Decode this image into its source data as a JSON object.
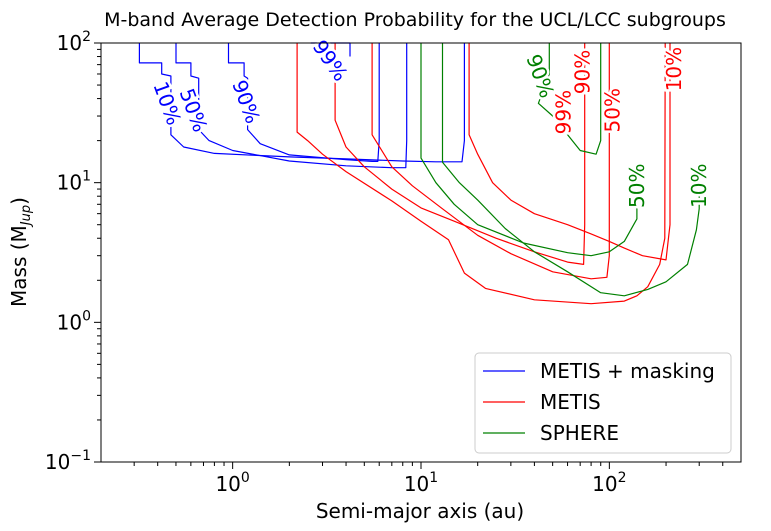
{
  "chart_data": {
    "type": "line",
    "title": "M-band Average Detection Probability for the UCL/LCC subgroups",
    "xlabel": "Semi-major axis (au)",
    "ylabel": "Mass (M",
    "ylabel_sub": "Jup",
    "ylabel_close": ")",
    "xscale": "log",
    "yscale": "log",
    "xlim": [
      0.2,
      500
    ],
    "ylim": [
      0.1,
      100
    ],
    "grid": false,
    "legend_position": "lower-right",
    "x_ticks": [
      {
        "value": 1,
        "base": "10",
        "exp": "0"
      },
      {
        "value": 10,
        "base": "10",
        "exp": "1"
      },
      {
        "value": 100,
        "base": "10",
        "exp": "2"
      }
    ],
    "y_ticks": [
      {
        "value": 0.1,
        "base": "10",
        "exp": "−1"
      },
      {
        "value": 1,
        "base": "10",
        "exp": "0"
      },
      {
        "value": 10,
        "base": "10",
        "exp": "1"
      },
      {
        "value": 100,
        "base": "10",
        "exp": "2"
      }
    ],
    "series": [
      {
        "name": "METIS + masking",
        "color": "#0000ff",
        "contours": [
          {
            "level": "10%",
            "points": [
              [
                0.32,
                100
              ],
              [
                0.32,
                72
              ],
              [
                0.42,
                72
              ],
              [
                0.42,
                60
              ],
              [
                0.47,
                58
              ],
              [
                0.47,
                22
              ],
              [
                0.55,
                18
              ],
              [
                0.8,
                16.2
              ],
              [
                2.0,
                15.3
              ],
              [
                4.0,
                14.8
              ],
              [
                8.0,
                14.3
              ],
              [
                12.0,
                14.1
              ],
              [
                16.5,
                14.1
              ],
              [
                17.0,
                20
              ],
              [
                17.0,
                100
              ]
            ],
            "label": {
              "text": "10%",
              "x": 0.45,
              "y": 37,
              "angle": 70
            }
          },
          {
            "level": "50%",
            "points": [
              [
                0.5,
                100
              ],
              [
                0.5,
                72
              ],
              [
                0.6,
                72
              ],
              [
                0.6,
                58
              ],
              [
                0.66,
                56
              ],
              [
                0.66,
                24
              ],
              [
                0.75,
                20
              ],
              [
                1.0,
                17
              ],
              [
                2.0,
                14.3
              ],
              [
                4.0,
                13.2
              ],
              [
                7.0,
                12.8
              ],
              [
                8.3,
                12.8
              ],
              [
                8.4,
                20
              ],
              [
                8.4,
                100
              ]
            ],
            "label": {
              "text": "50%",
              "x": 0.62,
              "y": 33,
              "angle": 70
            }
          },
          {
            "level": "90%",
            "points": [
              [
                0.95,
                100
              ],
              [
                0.95,
                72
              ],
              [
                1.15,
                72
              ],
              [
                1.15,
                58
              ],
              [
                1.2,
                56
              ],
              [
                1.2,
                24
              ],
              [
                1.4,
                19
              ],
              [
                2.0,
                15.8
              ],
              [
                4.0,
                14.6
              ],
              [
                5.5,
                14.2
              ],
              [
                5.9,
                14.2
              ],
              [
                6.0,
                20
              ],
              [
                6.0,
                100
              ]
            ],
            "label": {
              "text": "90%",
              "x": 1.18,
              "y": 38,
              "angle": 70
            }
          },
          {
            "level": "99%",
            "points": [
              [
                2.6,
                100
              ],
              [
                4.2,
                100
              ],
              [
                4.2,
                80
              ]
            ],
            "label": {
              "text": "99%",
              "x": 3.3,
              "y": 75,
              "angle": 55
            }
          }
        ]
      },
      {
        "name": "METIS",
        "color": "#ff0000",
        "contours": [
          {
            "level": "99%",
            "points": [
              [
                3.5,
                100
              ],
              [
                3.5,
                28
              ],
              [
                4.0,
                18
              ],
              [
                5.0,
                13
              ],
              [
                7.0,
                9.0
              ],
              [
                10.0,
                6.6
              ],
              [
                15.0,
                5.3
              ],
              [
                25.0,
                4.0
              ],
              [
                40.0,
                3.2
              ],
              [
                60.0,
                2.7
              ],
              [
                73.0,
                2.6
              ],
              [
                74.0,
                5
              ],
              [
                74.0,
                100
              ]
            ],
            "label": {
              "text": "99%",
              "x": 57,
              "y": 32,
              "angle": -90
            }
          },
          {
            "level": "90%",
            "points": [
              [
                5.5,
                100
              ],
              [
                5.5,
                22
              ],
              [
                7.0,
                13
              ],
              [
                9.0,
                9.5
              ],
              [
                13.0,
                6.5
              ],
              [
                20.0,
                4.2
              ],
              [
                30.0,
                3.1
              ],
              [
                50.0,
                2.3
              ],
              [
                80.0,
                2.05
              ],
              [
                97.0,
                2.1
              ],
              [
                100.0,
                3
              ],
              [
                100.0,
                100
              ]
            ],
            "label": {
              "text": "90%",
              "x": 72,
              "y": 62,
              "angle": -90
            }
          },
          {
            "level": "50%",
            "points": [
              [
                2.2,
                100
              ],
              [
                2.2,
                23
              ],
              [
                2.5,
                20
              ],
              [
                3.0,
                16
              ],
              [
                4.0,
                12
              ],
              [
                7.0,
                7.4
              ],
              [
                10.0,
                5.3
              ],
              [
                14.0,
                3.9
              ],
              [
                17.0,
                2.25
              ],
              [
                22.0,
                1.75
              ],
              [
                40.0,
                1.45
              ],
              [
                80.0,
                1.36
              ],
              [
                120.0,
                1.42
              ],
              [
                140.0,
                1.55
              ],
              [
                160.0,
                1.8
              ],
              [
                185.0,
                2.6
              ],
              [
                197.0,
                4
              ],
              [
                198.0,
                100
              ]
            ],
            "label": {
              "text": "50%",
              "x": 104,
              "y": 33,
              "angle": -90
            }
          },
          {
            "level": "10%",
            "points": [
              [
                18.0,
                100
              ],
              [
                18.0,
                22
              ],
              [
                20.0,
                16
              ],
              [
                24.0,
                10
              ],
              [
                30.0,
                7.5
              ],
              [
                40.0,
                6.0
              ],
              [
                60.0,
                5.0
              ],
              [
                80.0,
                4.3
              ],
              [
                100.0,
                3.8
              ],
              [
                120.0,
                3.4
              ],
              [
                150.0,
                3.0
              ],
              [
                200.0,
                2.8
              ],
              [
                210.0,
                5
              ],
              [
                210.0,
                100
              ]
            ],
            "label": {
              "text": "10%",
              "x": 220,
              "y": 65,
              "angle": -90
            }
          }
        ]
      },
      {
        "name": "SPHERE",
        "color": "#008000",
        "contours": [
          {
            "level": "90%",
            "points": [
              [
                48.0,
                100
              ],
              [
                48.0,
                60
              ],
              [
                42.0,
                37
              ],
              [
                50.0,
                30
              ],
              [
                60.0,
                22
              ],
              [
                70.0,
                17
              ],
              [
                85.0,
                16
              ],
              [
                90.0,
                20
              ],
              [
                90.0,
                100
              ]
            ],
            "label": {
              "text": "90%",
              "x": 43,
              "y": 58,
              "angle": 70
            }
          },
          {
            "level": "50%",
            "points": [
              [
                10.0,
                100
              ],
              [
                10.0,
                15
              ],
              [
                12.0,
                10
              ],
              [
                15.0,
                7.0
              ],
              [
                20.0,
                5.0
              ],
              [
                35.0,
                3.7
              ],
              [
                60.0,
                3.15
              ],
              [
                80.0,
                3.0
              ],
              [
                100.0,
                3.2
              ],
              [
                120.0,
                3.8
              ],
              [
                140.0,
                5.5
              ],
              [
                140.0,
                7.5
              ]
            ],
            "label": {
              "text": "50%",
              "x": 140,
              "y": 9.5,
              "angle": -90
            }
          },
          {
            "level": "10%",
            "points": [
              [
                13.0,
                100
              ],
              [
                13.0,
                14
              ],
              [
                16.0,
                10
              ],
              [
                20.0,
                7.5
              ],
              [
                28.0,
                4.7
              ],
              [
                40.0,
                3.2
              ],
              [
                60.0,
                2.3
              ],
              [
                90.0,
                1.63
              ],
              [
                120.0,
                1.55
              ],
              [
                160.0,
                1.72
              ],
              [
                200.0,
                1.95
              ],
              [
                260.0,
                2.6
              ],
              [
                290.0,
                4.6
              ],
              [
                300.0,
                6.5
              ],
              [
                300.0,
                8
              ]
            ],
            "label": {
              "text": "10%",
              "x": 300,
              "y": 9.5,
              "angle": -90
            }
          }
        ]
      }
    ]
  }
}
